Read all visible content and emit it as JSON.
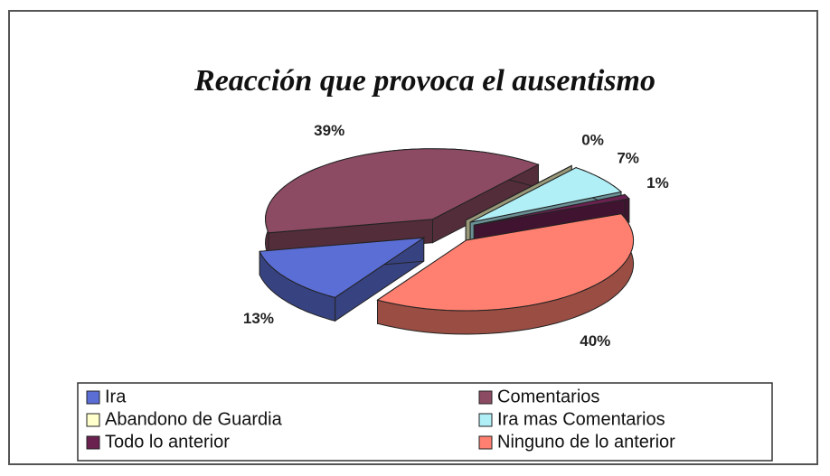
{
  "chart_data": {
    "type": "pie",
    "title": "Reacción que provoca el ausentismo",
    "categories": [
      "Ira",
      "Comentarios",
      "Abandono de Guardia",
      "Ira mas Comentarios",
      "Todo lo anterior",
      "Ninguno de lo anterior"
    ],
    "values": [
      13,
      39,
      0,
      7,
      1,
      40
    ],
    "value_labels": [
      "13%",
      "39%",
      "0%",
      "7%",
      "1%",
      "40%"
    ],
    "colors": [
      "#5b6ed6",
      "#8c4b63",
      "#ffffcc",
      "#b0eff6",
      "#6a2150",
      "#ff8070"
    ],
    "legend": "bottom"
  }
}
